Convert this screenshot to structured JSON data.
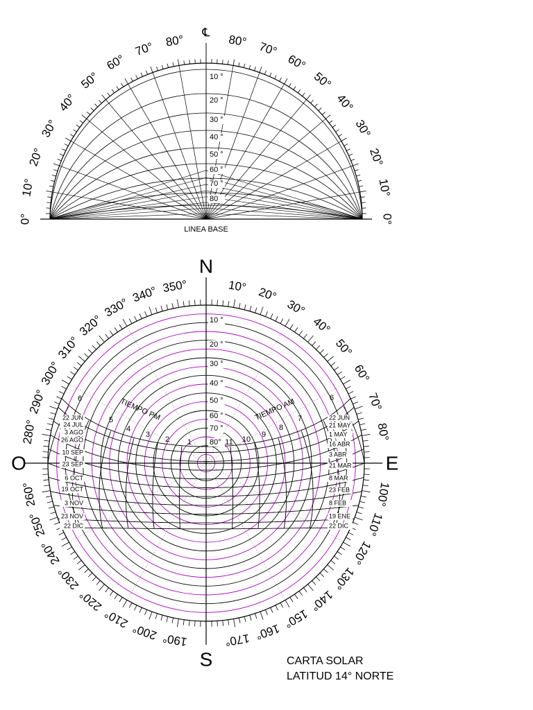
{
  "protractor": {
    "center_label": "℄",
    "left_angles": [
      "0°",
      "10°",
      "20°",
      "30°",
      "40°",
      "50°",
      "60°",
      "70°",
      "80°"
    ],
    "right_angles": [
      "0°",
      "10°",
      "20°",
      "30°",
      "40°",
      "50°",
      "60°",
      "70°",
      "80°"
    ],
    "altitude_labels": [
      "10 °",
      "20 °",
      "30 °",
      "40 °",
      "50 °",
      "60 °",
      "70 °",
      "80"
    ],
    "base_label": "LINEA BASE"
  },
  "sun_chart": {
    "cardinals": {
      "north": "N",
      "east": "E",
      "south": "S",
      "west": "O"
    },
    "azimuth_labels": [
      "10°",
      "20°",
      "30°",
      "40°",
      "50°",
      "60°",
      "70°",
      "80°",
      "100°",
      "110°",
      "120°",
      "130°",
      "140°",
      "150°",
      "160°",
      "170°",
      "190°",
      "200°",
      "210°",
      "220°",
      "230°",
      "240°",
      "250°",
      "260°",
      "280°",
      "290°",
      "300°",
      "310°",
      "320°",
      "330°",
      "340°",
      "350°"
    ],
    "altitude_labels": [
      "10 °",
      "20 °",
      "30 °",
      "40 °",
      "50 °",
      "60 °",
      "70 °",
      "80°"
    ],
    "pm_label": "TIEMPO PM",
    "am_label": "TIEMPO AM",
    "pm_hours": [
      "1",
      "2",
      "3",
      "4",
      "5",
      "6"
    ],
    "am_hours": [
      "11",
      "10",
      "9",
      "8",
      "7",
      "6"
    ],
    "west_dates": [
      "22 JUN",
      "24 JUL",
      "3 AGO",
      "26 AGO",
      "10 SEP",
      "23 SEP",
      "6 OCT",
      "19 OCT",
      "3 NOV",
      "23 NOV",
      "22 DIC"
    ],
    "east_dates": [
      "22 JUN",
      "21 MAY",
      "1 MAY",
      "16 ABR",
      "3 ABR",
      "21 MAR",
      "8 MAR",
      "23 FEB",
      "8 FEB",
      "19 ENE",
      "22 DIC"
    ]
  },
  "caption": {
    "title": "CARTA SOLAR",
    "subtitle": "LATITUD 14° NORTE"
  }
}
